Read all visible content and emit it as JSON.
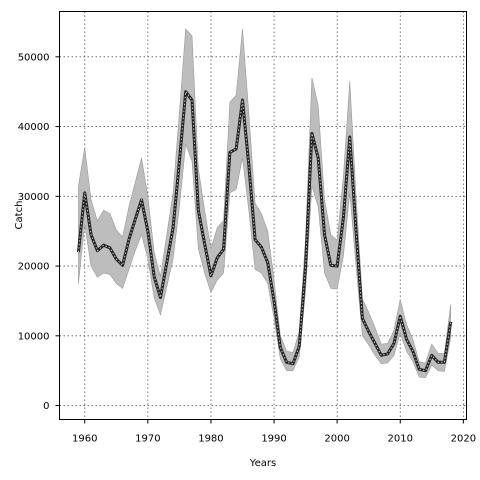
{
  "chart_data": {
    "type": "line",
    "title": "",
    "xlabel": "Years",
    "ylabel": "Catch",
    "xlim": [
      1956,
      2020.5
    ],
    "ylim": [
      -2000,
      56500
    ],
    "grid": true,
    "x_ticks": [
      1960,
      1970,
      1980,
      1990,
      2000,
      2010,
      2020
    ],
    "y_ticks": [
      0,
      10000,
      20000,
      30000,
      40000,
      50000
    ],
    "x_tick_labels": [
      "1960",
      "1970",
      "1980",
      "1990",
      "2000",
      "2010",
      "2020"
    ],
    "y_tick_labels": [
      "0",
      "10000",
      "20000",
      "30000",
      "40000",
      "50000"
    ],
    "colors": {
      "band": "#bdbdbd",
      "band_edge": "#9a9a9a",
      "line": "#222222",
      "line_dots": "#c8c8c8",
      "grid": "#555555"
    },
    "series": [
      {
        "x": [
          1959,
          1960,
          1961,
          1962,
          1963,
          1964,
          1965,
          1966,
          1967,
          1968,
          1969,
          1970,
          1971,
          1972,
          1973,
          1974,
          1975,
          1976,
          1977,
          1978,
          1979,
          1980,
          1981,
          1982,
          1983,
          1984,
          1985,
          1986,
          1987,
          1988,
          1989,
          1990,
          1991,
          1992,
          1993,
          1994,
          1995,
          1996,
          1997,
          1998,
          1999,
          2000,
          2001,
          2002,
          2003,
          2004,
          2005,
          2006,
          2007,
          2008,
          2009,
          2010,
          2011,
          2012,
          2013,
          2014,
          2015,
          2016,
          2017,
          2018
        ],
        "y": [
          22000,
          30500,
          24500,
          22200,
          23000,
          22600,
          21000,
          20100,
          23800,
          26700,
          29500,
          25000,
          18500,
          15500,
          20500,
          25500,
          35000,
          45000,
          43800,
          28000,
          23200,
          18600,
          21200,
          22400,
          36300,
          36800,
          43800,
          34500,
          23800,
          22700,
          20500,
          15000,
          8300,
          6200,
          6000,
          8500,
          20000,
          39000,
          35500,
          24500,
          20100,
          20000,
          27000,
          38500,
          25000,
          12500,
          10600,
          8900,
          7200,
          7400,
          8900,
          12800,
          9500,
          7800,
          5200,
          5000,
          7200,
          6200,
          6200,
          12000
        ],
        "lower": [
          17500,
          26000,
          20000,
          18400,
          19000,
          18800,
          17500,
          16800,
          19500,
          22200,
          24500,
          21000,
          15500,
          13000,
          17000,
          21000,
          28500,
          37500,
          35000,
          22500,
          19000,
          16200,
          18000,
          19000,
          30500,
          31000,
          35500,
          28000,
          19500,
          19000,
          17500,
          12500,
          6700,
          5000,
          5000,
          7000,
          16500,
          31500,
          28500,
          19000,
          16800,
          16700,
          21500,
          30500,
          20000,
          10000,
          8700,
          7200,
          6000,
          6100,
          7200,
          10400,
          7800,
          6300,
          4100,
          4000,
          5800,
          5000,
          4900,
          9700
        ],
        "upper": [
          31500,
          37000,
          29500,
          26500,
          28000,
          27500,
          25200,
          24200,
          28500,
          32000,
          35500,
          30000,
          22000,
          18500,
          24500,
          30500,
          42000,
          54000,
          53000,
          34000,
          28000,
          22500,
          25500,
          26500,
          43500,
          44500,
          54000,
          42000,
          29000,
          27500,
          25000,
          18000,
          10000,
          7800,
          7600,
          10600,
          24000,
          47000,
          43000,
          29500,
          24500,
          23700,
          33000,
          46500,
          30000,
          15300,
          13400,
          11200,
          8800,
          8900,
          10800,
          15200,
          11600,
          9500,
          6300,
          6100,
          8800,
          7500,
          7500,
          14500
        ]
      }
    ]
  }
}
